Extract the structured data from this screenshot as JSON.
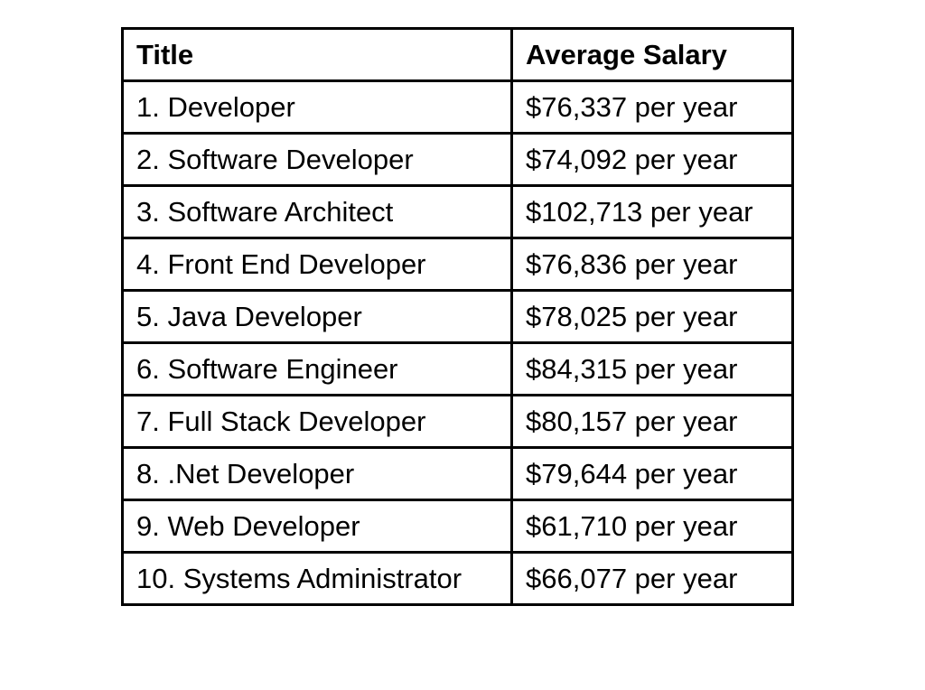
{
  "table": {
    "headers": {
      "title": "Title",
      "salary": "Average Salary"
    },
    "rows": [
      {
        "title": "1. Developer",
        "salary": "$76,337 per year"
      },
      {
        "title": "2. Software Developer",
        "salary": "$74,092 per year"
      },
      {
        "title": "3. Software Architect",
        "salary": "$102,713 per year"
      },
      {
        "title": "4. Front End Developer",
        "salary": "$76,836 per year"
      },
      {
        "title": "5. Java Developer",
        "salary": "$78,025 per year"
      },
      {
        "title": "6. Software Engineer",
        "salary": "$84,315 per year"
      },
      {
        "title": "7. Full Stack Developer",
        "salary": "$80,157 per year"
      },
      {
        "title": "8. .Net Developer",
        "salary": "$79,644 per year"
      },
      {
        "title": "9. Web Developer",
        "salary": "$61,710 per year"
      },
      {
        "title": "10. Systems Administrator",
        "salary": "$66,077 per year"
      }
    ]
  }
}
